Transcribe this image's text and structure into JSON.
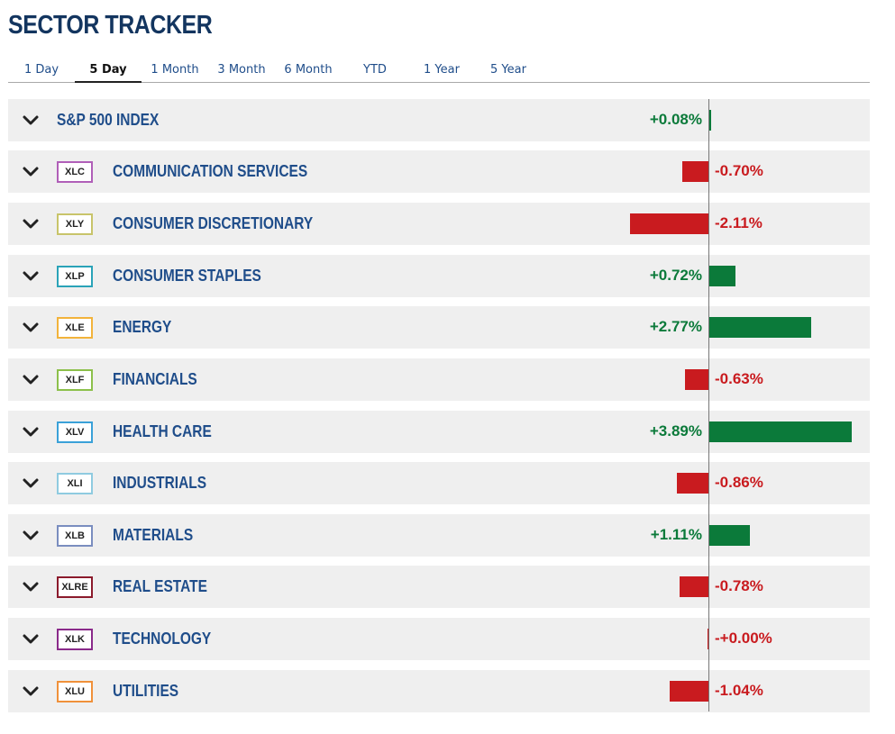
{
  "title": "SECTOR TRACKER",
  "tabs": [
    {
      "label": "1 Day"
    },
    {
      "label": "5 Day",
      "active": true
    },
    {
      "label": "1 Month"
    },
    {
      "label": "3 Month"
    },
    {
      "label": "6 Month"
    },
    {
      "label": "YTD"
    },
    {
      "label": "1 Year"
    },
    {
      "label": "5 Year"
    }
  ],
  "colors": {
    "positive": "#0b7a3a",
    "negative": "#c91b1f",
    "name": "#1f4d8a"
  },
  "rows": [
    {
      "name": "S&P 500 INDEX",
      "ticker": "",
      "change": 0.08,
      "label": "+0.08%"
    },
    {
      "name": "COMMUNICATION SERVICES",
      "ticker": "XLC",
      "ticker_color": "#b05fb8",
      "change": -0.7,
      "label": "-0.70%"
    },
    {
      "name": "CONSUMER DISCRETIONARY",
      "ticker": "XLY",
      "ticker_color": "#c8c46a",
      "change": -2.11,
      "label": "-2.11%"
    },
    {
      "name": "CONSUMER STAPLES",
      "ticker": "XLP",
      "ticker_color": "#2aa3b8",
      "change": 0.72,
      "label": "+0.72%"
    },
    {
      "name": "ENERGY",
      "ticker": "XLE",
      "ticker_color": "#f2b33b",
      "change": 2.77,
      "label": "+2.77%"
    },
    {
      "name": "FINANCIALS",
      "ticker": "XLF",
      "ticker_color": "#8cc04b",
      "change": -0.63,
      "label": "-0.63%"
    },
    {
      "name": "HEALTH CARE",
      "ticker": "XLV",
      "ticker_color": "#3aa1d8",
      "change": 3.89,
      "label": "+3.89%"
    },
    {
      "name": "INDUSTRIALS",
      "ticker": "XLI",
      "ticker_color": "#8fcbe0",
      "change": -0.86,
      "label": "-0.86%"
    },
    {
      "name": "MATERIALS",
      "ticker": "XLB",
      "ticker_color": "#7a8dbf",
      "change": 1.11,
      "label": "+1.11%"
    },
    {
      "name": "REAL ESTATE",
      "ticker": "XLRE",
      "ticker_color": "#8b1a2c",
      "change": -0.78,
      "label": "-0.78%"
    },
    {
      "name": "TECHNOLOGY",
      "ticker": "XLK",
      "ticker_color": "#8a2a8a",
      "change": 0.0,
      "label": "-+0.00%"
    },
    {
      "name": "UTILITIES",
      "ticker": "XLU",
      "ticker_color": "#f0913a",
      "change": -1.04,
      "label": "-1.04%"
    }
  ]
}
